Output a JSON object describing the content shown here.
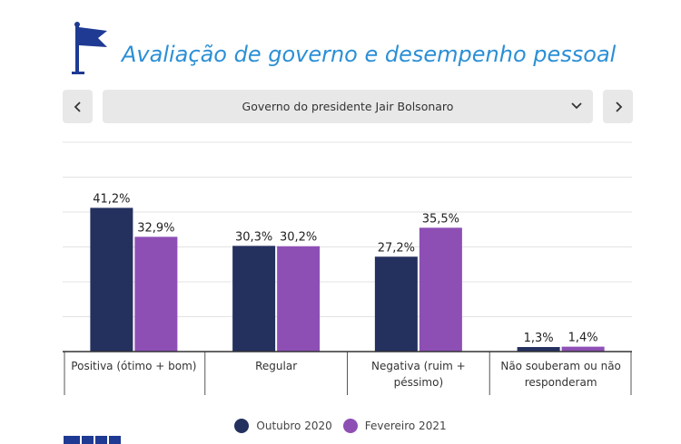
{
  "header": {
    "title": "Avaliação de governo e desempenho pessoal",
    "icon": "flag-icon",
    "color": "#2b8fd6",
    "icon_color": "#1f3a93"
  },
  "selector": {
    "selected": "Governo do presidente Jair Bolsonaro",
    "prev_icon": "chevron-left-icon",
    "next_icon": "chevron-right-icon",
    "dropdown_icon": "chevron-down-icon"
  },
  "chart_data": {
    "type": "bar",
    "categories": [
      [
        "Positiva (ótimo + bom)"
      ],
      [
        "Regular"
      ],
      [
        "Negativa (ruim +",
        "péssimo)"
      ],
      [
        "Não souberam ou não",
        "responderam"
      ]
    ],
    "series": [
      {
        "name": "Outubro 2020",
        "color": "#24305e",
        "values": [
          41.2,
          30.3,
          27.2,
          1.3
        ],
        "labels": [
          "41,2%",
          "30,3%",
          "27,2%",
          "1,3%"
        ]
      },
      {
        "name": "Fevereiro 2021",
        "color": "#8e4fb5",
        "values": [
          32.9,
          30.2,
          35.5,
          1.4
        ],
        "labels": [
          "32,9%",
          "30,2%",
          "35,5%",
          "1,4%"
        ]
      }
    ],
    "ylim": [
      0,
      60
    ],
    "grid": true,
    "legend": "bottom-center"
  }
}
